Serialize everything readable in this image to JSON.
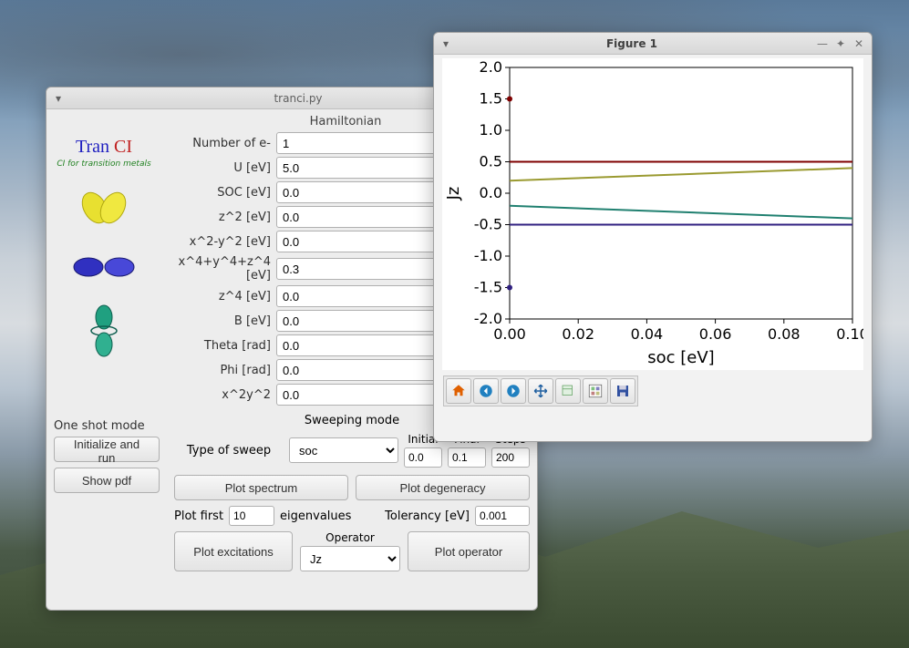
{
  "desktop": {
    "colors": {
      "sky_top": "#5a7a9a",
      "sky_mid": "#c8d0d8",
      "mountain": "#4a5a40"
    }
  },
  "tranci": {
    "title": "tranci.py",
    "logo": {
      "text_tran": "Tran",
      "text_ci": "CI",
      "subtitle": "CI for transition metals",
      "color_tran": "#2020c0",
      "color_ci": "#c02020",
      "color_sub": "#208020",
      "orbitals": [
        {
          "name": "d-orbital-yellow",
          "color": "#e8e030"
        },
        {
          "name": "d-orbital-blue",
          "color": "#3030c0"
        },
        {
          "name": "d-orbital-green",
          "color": "#20a080"
        }
      ]
    },
    "hamiltonian": {
      "title": "Hamiltonian",
      "fields": [
        {
          "label": "Number of e-",
          "value": "1"
        },
        {
          "label": "U [eV]",
          "value": "5.0"
        },
        {
          "label": "SOC [eV]",
          "value": "0.0"
        },
        {
          "label": "z^2 [eV]",
          "value": "0.0"
        },
        {
          "label": "x^2-y^2 [eV]",
          "value": "0.0"
        },
        {
          "label": "x^4+y^4+z^4 [eV]",
          "value": "0.3"
        },
        {
          "label": "z^4 [eV]",
          "value": "0.0"
        },
        {
          "label": "B [eV]",
          "value": "0.0"
        },
        {
          "label": "Theta [rad]",
          "value": "0.0"
        },
        {
          "label": "Phi [rad]",
          "value": "0.0"
        },
        {
          "label": "x^2y^2",
          "value": "0.0"
        }
      ]
    },
    "oneshot": {
      "title": "One shot mode",
      "init_run": "Initialize and run",
      "show_pdf": "Show pdf"
    },
    "sweeping": {
      "title": "Sweeping mode",
      "type_label": "Type of sweep",
      "type_value": "soc",
      "initial_label": "Initial",
      "initial_value": "0.0",
      "final_label": "Final",
      "final_value": "0.1",
      "steps_label": "Steps",
      "steps_value": "200",
      "plot_spectrum": "Plot spectrum",
      "plot_degeneracy": "Plot degeneracy",
      "plot_first_label": "Plot first",
      "plot_first_value": "10",
      "eigenvalues_label": "eigenvalues",
      "tolerancy_label": "Tolerancy [eV]",
      "tolerancy_value": "0.001",
      "plot_excitations": "Plot excitations",
      "operator_label": "Operator",
      "operator_value": "Jz",
      "plot_operator": "Plot operator"
    }
  },
  "figure": {
    "title": "Figure 1",
    "chart": {
      "type": "line",
      "xlabel": "soc  [eV]",
      "ylabel": "Jz",
      "xlim": [
        0.0,
        0.1
      ],
      "ylim": [
        -2.0,
        2.0
      ],
      "xticks": [
        0.0,
        0.02,
        0.04,
        0.06,
        0.08,
        0.1
      ],
      "yticks": [
        -2.0,
        -1.5,
        -1.0,
        -0.5,
        0.0,
        0.5,
        1.0,
        1.5,
        2.0
      ],
      "label_fontsize": 18,
      "tick_fontsize": 16,
      "background_color": "#ffffff",
      "axis_color": "#000000",
      "line_width": 2.0,
      "series": [
        {
          "name": "line1",
          "color": "#7f0000",
          "x": [
            0.0,
            0.1
          ],
          "y": [
            0.5,
            0.5
          ]
        },
        {
          "name": "line2",
          "color": "#9a9a30",
          "x": [
            0.0,
            0.1
          ],
          "y": [
            0.2,
            0.4
          ]
        },
        {
          "name": "line3",
          "color": "#208070",
          "x": [
            0.0,
            0.1
          ],
          "y": [
            -0.2,
            -0.4
          ]
        },
        {
          "name": "line4",
          "color": "#302080",
          "x": [
            0.0,
            0.1
          ],
          "y": [
            -0.5,
            -0.5
          ]
        }
      ],
      "points": [
        {
          "x": 0.0,
          "y": 1.5,
          "color": "#7f0000"
        },
        {
          "x": 0.0,
          "y": -1.5,
          "color": "#302080"
        }
      ]
    },
    "toolbar": {
      "icons": [
        "home",
        "back",
        "forward",
        "pan",
        "zoom",
        "subplots",
        "save"
      ]
    }
  }
}
